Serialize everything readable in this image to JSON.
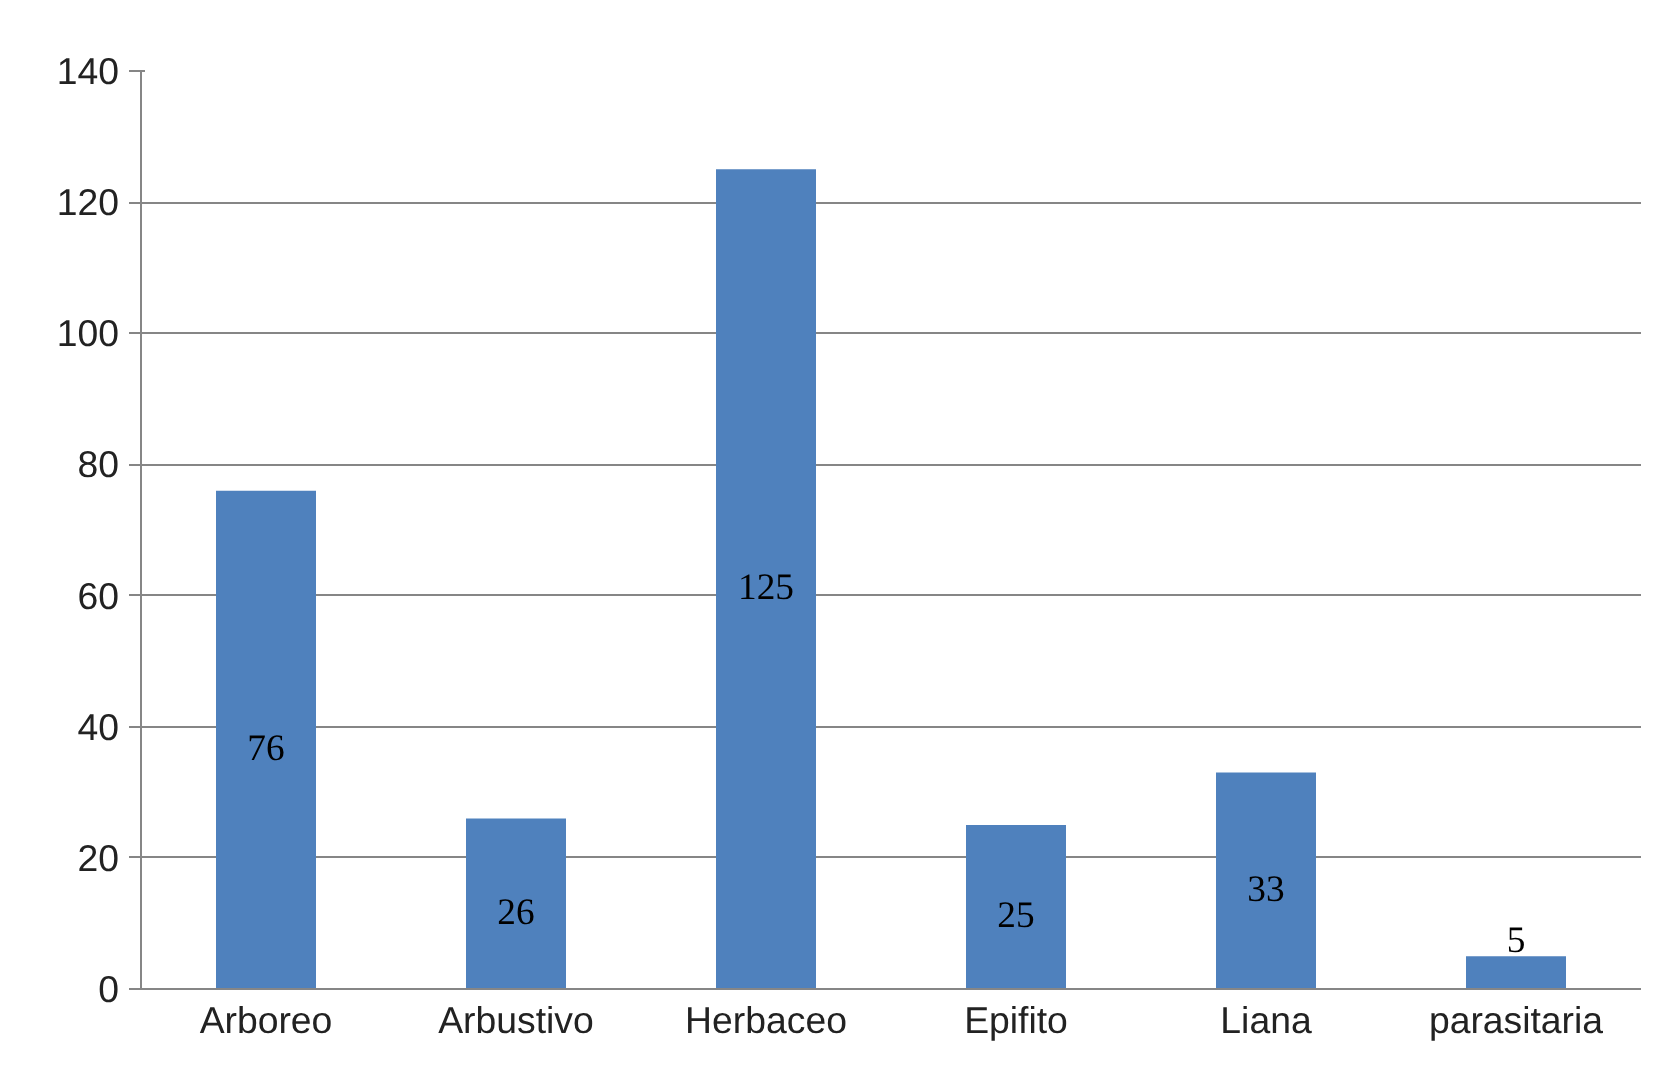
{
  "chart_data": {
    "type": "bar",
    "categories": [
      "Arboreo",
      "Arbustivo",
      "Herbaceo",
      "Epifito",
      "Liana",
      "parasitaria"
    ],
    "values": [
      76,
      26,
      125,
      25,
      33,
      5
    ],
    "color": "#4f81bd",
    "ylim": [
      0,
      140
    ],
    "yticks": [
      0,
      20,
      40,
      60,
      80,
      100,
      120,
      140
    ],
    "grid": "y",
    "data_labels": true
  }
}
